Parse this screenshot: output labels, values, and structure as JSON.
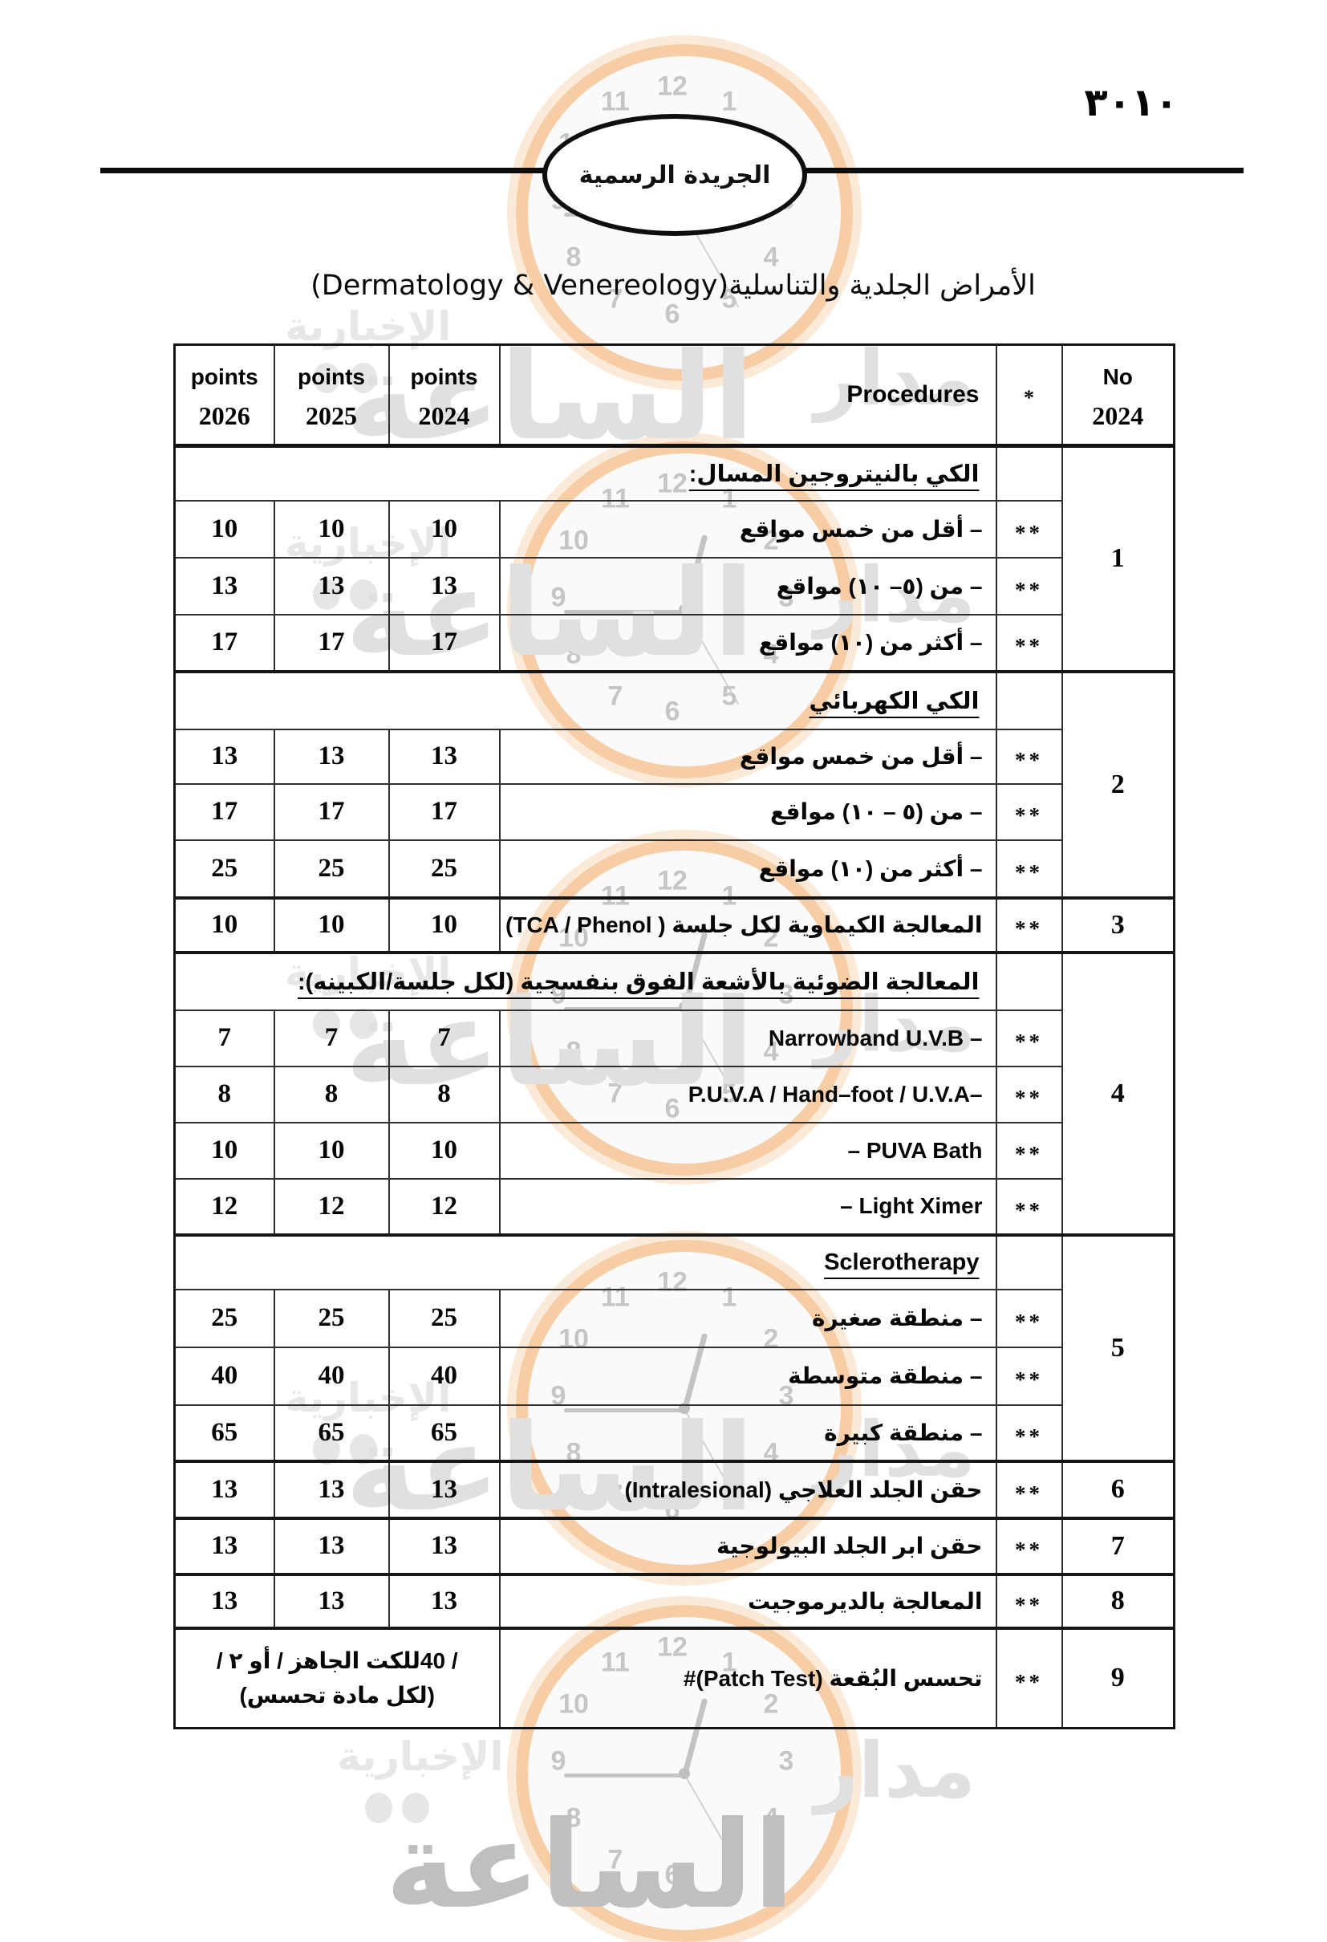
{
  "page": {
    "number_top_right": "٣٠١٠",
    "gazette_oval_label": "الجريدة الرسمية",
    "title": "الأمراض الجلدية والتناسلية(Dermatology & Venereology)"
  },
  "watermark": {
    "brand_large": "الساعة",
    "brand_right": "مدار",
    "brand_small": "الإخبارية",
    "clock_numbers": [
      "12",
      "1",
      "2",
      "3",
      "4",
      "5",
      "6",
      "7",
      "8",
      "9",
      "10",
      "11"
    ],
    "ring_color": "#f7cda6",
    "text_color": "#e0e0e0"
  },
  "table": {
    "header": {
      "no_line1": "No",
      "no_line2": "2024",
      "star": "*",
      "procedures": "Procedures",
      "points_label": "points",
      "year_2024": "2024",
      "year_2025": "2025",
      "year_2026": "2026"
    },
    "rows": [
      {
        "kind": "group",
        "no": "1",
        "text": "الكي بالنيتروجين المسال:"
      },
      {
        "kind": "item",
        "stars": "**",
        "proc": "– أقل من خمس مواقع",
        "p2024": "10",
        "p2025": "10",
        "p2026": "10"
      },
      {
        "kind": "item",
        "stars": "**",
        "proc": "– من (٥– ١٠) مواقع",
        "p2024": "13",
        "p2025": "13",
        "p2026": "13"
      },
      {
        "kind": "item",
        "stars": "**",
        "proc": "– أكثر من (١٠) مواقع",
        "p2024": "17",
        "p2025": "17",
        "p2026": "17"
      },
      {
        "kind": "group",
        "no": "2",
        "text": "الكي الكهربائي"
      },
      {
        "kind": "item",
        "stars": "**",
        "proc": "– أقل من خمس مواقع",
        "p2024": "13",
        "p2025": "13",
        "p2026": "13"
      },
      {
        "kind": "item",
        "stars": "**",
        "proc": "– من (٥ – ١٠) مواقع",
        "p2024": "17",
        "p2025": "17",
        "p2026": "17"
      },
      {
        "kind": "item",
        "stars": "**",
        "proc": "– أكثر من (١٠) مواقع",
        "p2024": "25",
        "p2025": "25",
        "p2026": "25"
      },
      {
        "kind": "item",
        "no": "3",
        "stars": "**",
        "proc": "المعالجة الكيماوية لكل جلسة ( TCA / Phenol)",
        "p2024": "10",
        "p2025": "10",
        "p2026": "10"
      },
      {
        "kind": "group",
        "no": "4",
        "text": "المعالجة الضوئية بالأشعة الفوق بنفسجية (لكل جلسة/الكبينه):"
      },
      {
        "kind": "item",
        "stars": "**",
        "proc": "– Narrowband U.V.B",
        "p2024": "7",
        "p2025": "7",
        "p2026": "7"
      },
      {
        "kind": "item",
        "stars": "**",
        "proc": "–P.U.V.A / Hand–foot / U.V.A",
        "p2024": "8",
        "p2025": "8",
        "p2026": "8"
      },
      {
        "kind": "item",
        "stars": "**",
        "proc": "PUVA Bath –",
        "p2024": "10",
        "p2025": "10",
        "p2026": "10"
      },
      {
        "kind": "item",
        "stars": "**",
        "proc": "Light Ximer –",
        "p2024": "12",
        "p2025": "12",
        "p2026": "12"
      },
      {
        "kind": "group",
        "no": "5",
        "text": "Sclerotherapy"
      },
      {
        "kind": "item",
        "stars": "**",
        "proc": "– منطقة صغيرة",
        "p2024": "25",
        "p2025": "25",
        "p2026": "25"
      },
      {
        "kind": "item",
        "stars": "**",
        "proc": "– منطقة متوسطة",
        "p2024": "40",
        "p2025": "40",
        "p2026": "40"
      },
      {
        "kind": "item",
        "stars": "**",
        "proc": "– منطقة كبيرة",
        "p2024": "65",
        "p2025": "65",
        "p2026": "65"
      },
      {
        "kind": "item",
        "no": "6",
        "stars": "**",
        "proc": "حقن الجلد العلاجي (Intralesional)",
        "p2024": "13",
        "p2025": "13",
        "p2026": "13"
      },
      {
        "kind": "item",
        "no": "7",
        "stars": "**",
        "proc": "حقن ابر الجلد البيولوجية",
        "p2024": "13",
        "p2025": "13",
        "p2026": "13"
      },
      {
        "kind": "item",
        "no": "8",
        "stars": "**",
        "proc": "المعالجة بالديرموجيت",
        "p2024": "13",
        "p2025": "13",
        "p2026": "13"
      },
      {
        "kind": "item",
        "no": "9",
        "stars": "**",
        "proc": "تحسس البُقعة (Patch Test)#",
        "points_merged_line1": "/ 40للكت الجاهز / أو ٢ /",
        "points_merged_line2": "(لكل مادة تحسس)"
      }
    ]
  }
}
